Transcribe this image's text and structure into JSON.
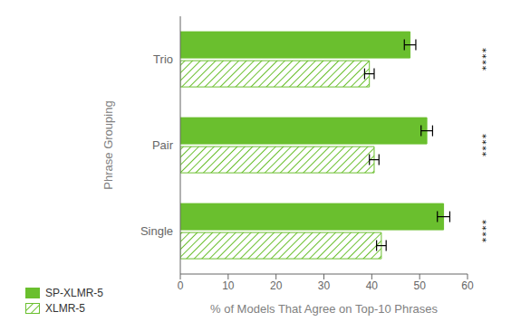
{
  "chart_data": {
    "type": "bar",
    "orientation": "horizontal",
    "categories": [
      "Single",
      "Pair",
      "Trio"
    ],
    "series": [
      {
        "name": "SP-XLMR-5",
        "color": "#6abf2e",
        "values": [
          55.0,
          51.5,
          48.0
        ],
        "errors": [
          1.3,
          1.2,
          1.2
        ]
      },
      {
        "name": "XLMR-5",
        "color": "#6abf2e",
        "values": [
          42.0,
          40.5,
          39.5
        ],
        "errors": [
          1.0,
          1.0,
          1.0
        ]
      }
    ],
    "xlim": [
      0,
      60
    ],
    "xticks": [
      0,
      10,
      20,
      30,
      40,
      50,
      60
    ],
    "xlabel": "% of Models That Agree on Top-10 Phrases",
    "ylabel": "Phrase Grouping",
    "annotations": [
      "****",
      "****",
      "****"
    ],
    "legend": "lower left",
    "grid": false
  }
}
